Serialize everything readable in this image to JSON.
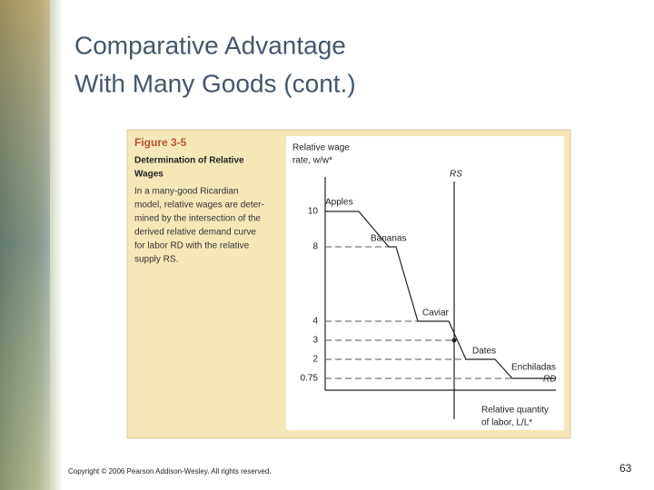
{
  "slide": {
    "title": [
      "Comparative Advantage",
      "With Many Goods (cont.)"
    ]
  },
  "figure": {
    "number": "Figure 3-5",
    "heading": [
      "Determination of Relative",
      "Wages"
    ],
    "text": [
      "In a many-good Ricardian",
      "model, relative wages are deter-",
      "mined by the intersection of the",
      "derived relative demand curve",
      "for labor RD with the relative",
      "supply RS."
    ]
  },
  "graph": {
    "y_axis_label": [
      "Relative wage",
      "rate, w/w*"
    ],
    "x_axis_label": [
      "Relative quantity",
      "of labor, L/L*"
    ],
    "y_ticks": [
      10,
      8,
      4,
      3,
      2,
      0.75
    ],
    "goods": [
      "Apples",
      "Bananas",
      "Caviar",
      "Dates",
      "Enchiladas"
    ],
    "supply_curve": "RS",
    "demand_curve": "RD"
  },
  "footer": {
    "copyright": "Copyright © 2006 Pearson Addison-Wesley. All rights reserved.",
    "page": "63"
  }
}
